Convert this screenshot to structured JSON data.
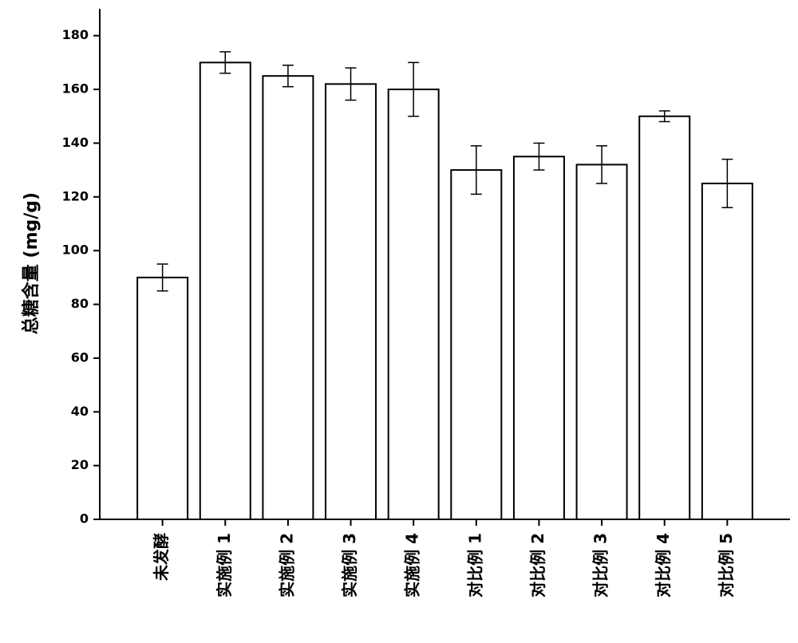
{
  "chart_data": {
    "type": "bar",
    "y_label": "总糖含量 (mg/g)",
    "categories": [
      "未发酵",
      "实施例 1",
      "实施例 2",
      "实施例 3",
      "实施例 4",
      "对比例 1",
      "对比例 2",
      "对比例 3",
      "对比例 4",
      "对比例 5"
    ],
    "values": [
      90,
      170,
      165,
      162,
      160,
      130,
      135,
      132,
      150,
      125
    ],
    "errors": [
      5,
      4,
      4,
      6,
      10,
      9,
      5,
      7,
      2,
      9
    ],
    "color": "#ffffff",
    "ylim": [
      0,
      190
    ],
    "yticks": [
      0,
      20,
      40,
      60,
      80,
      100,
      120,
      140,
      160,
      180
    ]
  }
}
